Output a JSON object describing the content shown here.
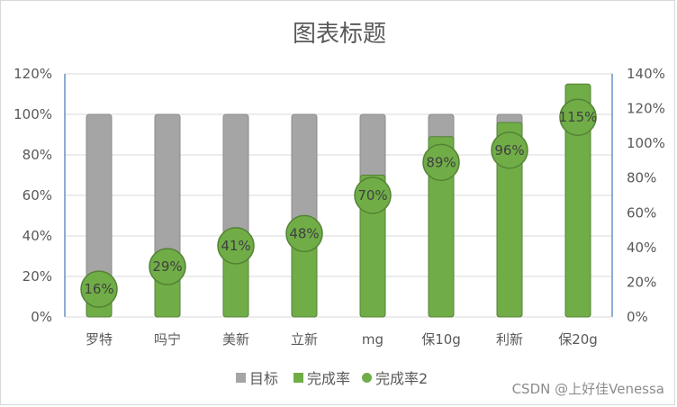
{
  "chart_data": {
    "type": "bar",
    "title": "图表标题",
    "categories": [
      "罗特",
      "吗宁",
      "美新",
      "立新",
      "mg",
      "保10g",
      "利新",
      "保20g"
    ],
    "series": [
      {
        "name": "目标",
        "kind": "bar",
        "axis": "left",
        "color": "#a5a5a5",
        "values": [
          1.0,
          1.0,
          1.0,
          1.0,
          1.0,
          1.0,
          1.0,
          1.0
        ]
      },
      {
        "name": "完成率",
        "kind": "bar",
        "axis": "left",
        "color": "#70ad47",
        "values": [
          0.16,
          0.29,
          0.41,
          0.48,
          0.7,
          0.89,
          0.96,
          1.15
        ]
      },
      {
        "name": "完成率2",
        "kind": "marker",
        "axis": "right",
        "color": "#70ad47",
        "values": [
          0.16,
          0.29,
          0.41,
          0.48,
          0.7,
          0.89,
          0.96,
          1.15
        ],
        "labels": [
          "16%",
          "29%",
          "41%",
          "48%",
          "70%",
          "89%",
          "96%",
          "115%"
        ]
      }
    ],
    "y_left": {
      "ylim": [
        0,
        1.2
      ],
      "ticks": [
        "0%",
        "20%",
        "40%",
        "60%",
        "80%",
        "100%",
        "120%"
      ]
    },
    "y_right": {
      "ylim": [
        0,
        1.4
      ],
      "ticks": [
        "0%",
        "20%",
        "40%",
        "60%",
        "80%",
        "100%",
        "120%",
        "140%"
      ]
    },
    "grid": true,
    "legend": "bottom"
  },
  "watermark": "CSDN @上好佳Venessa"
}
